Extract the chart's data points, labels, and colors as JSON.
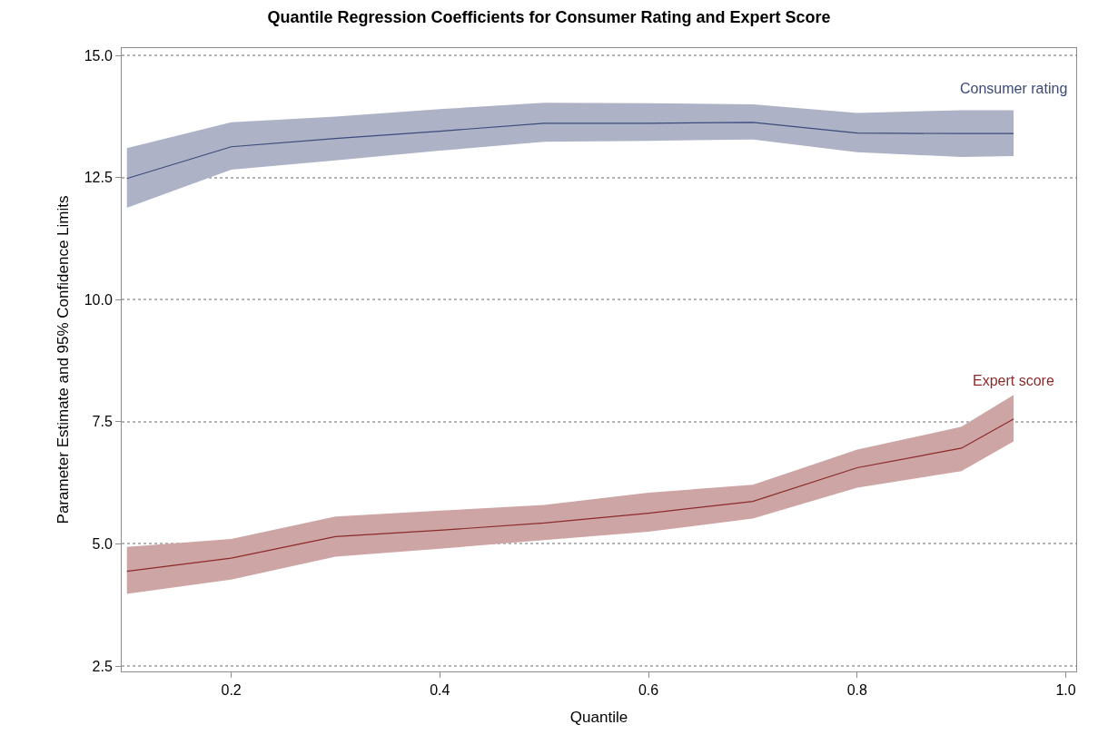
{
  "chart_data": {
    "type": "line",
    "title": "Quantile Regression Coefficients for Consumer Rating and Expert Score",
    "xlabel": "Quantile",
    "ylabel": "Parameter Estimate and 95% Confidence Limits",
    "x": [
      0.1,
      0.2,
      0.3,
      0.4,
      0.5,
      0.6,
      0.7,
      0.8,
      0.9,
      0.95
    ],
    "series": [
      {
        "name": "Consumer rating",
        "color": "#3c4a7a",
        "values": [
          12.48,
          13.13,
          13.3,
          13.45,
          13.61,
          13.61,
          13.63,
          13.41,
          13.4,
          13.4
        ],
        "upper": [
          13.1,
          13.63,
          13.75,
          13.9,
          14.03,
          14.02,
          14.0,
          13.82,
          13.88,
          13.88
        ],
        "lower": [
          11.88,
          12.66,
          12.85,
          13.05,
          13.23,
          13.25,
          13.28,
          13.02,
          12.92,
          12.94
        ]
      },
      {
        "name": "Expert score",
        "color": "#8b2a2a",
        "values": [
          4.44,
          4.71,
          5.15,
          5.28,
          5.43,
          5.63,
          5.87,
          6.56,
          6.96,
          7.56
        ],
        "upper": [
          4.94,
          5.1,
          5.56,
          5.68,
          5.8,
          6.05,
          6.21,
          6.93,
          7.4,
          8.05
        ],
        "lower": [
          3.98,
          4.27,
          4.74,
          4.9,
          5.08,
          5.25,
          5.52,
          6.15,
          6.49,
          7.1
        ]
      }
    ],
    "xlim": [
      0.095,
      1.01
    ],
    "xticks": [
      {
        "value": 0.2,
        "label": "0.2"
      },
      {
        "value": 0.4,
        "label": "0.4"
      },
      {
        "value": 0.6,
        "label": "0.6"
      },
      {
        "value": 0.8,
        "label": "0.8"
      },
      {
        "value": 1.0,
        "label": "1.0"
      }
    ],
    "ylim": [
      2.39,
      15.15
    ],
    "yticks": [
      2.5,
      {
        "value": 5,
        "label": "5.0"
      },
      7.5,
      {
        "value": 10,
        "label": "10.0"
      },
      12.5,
      {
        "value": 15,
        "label": "15.0"
      }
    ],
    "grid": "y",
    "legend": false,
    "line_style": "solid",
    "marker": "none"
  }
}
